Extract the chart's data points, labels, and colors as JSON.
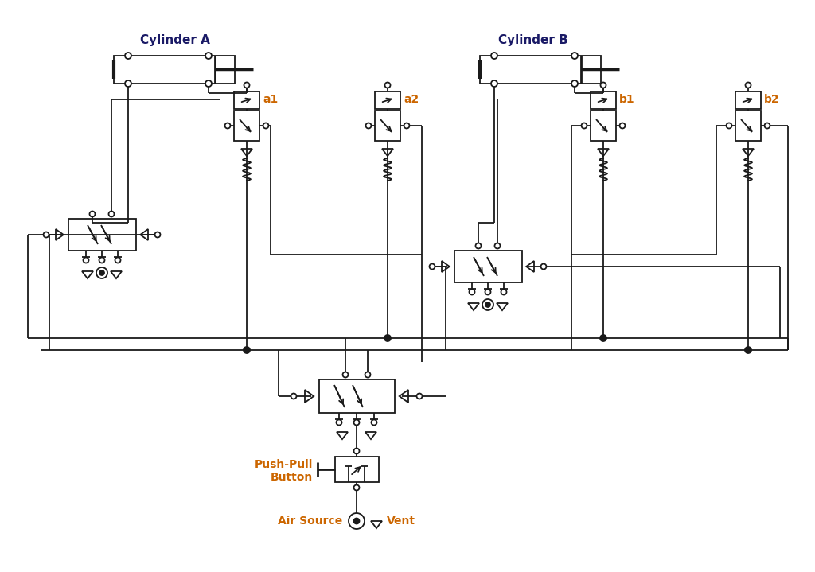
{
  "bg_color": "#ffffff",
  "line_color": "#1a1a1a",
  "text_color_label": "#cc6600",
  "text_color_title": "#1a1a66",
  "cylinder_a_label": "Cylinder A",
  "cylinder_b_label": "Cylinder B",
  "label_a1": "a1",
  "label_a2": "a2",
  "label_b1": "b1",
  "label_b2": "b2",
  "label_push_pull_1": "Push-Pull",
  "label_push_pull_2": "Button",
  "label_air_source": "Air Source",
  "label_vent": "Vent",
  "figsize": [
    10.24,
    7.19
  ],
  "dpi": 100
}
